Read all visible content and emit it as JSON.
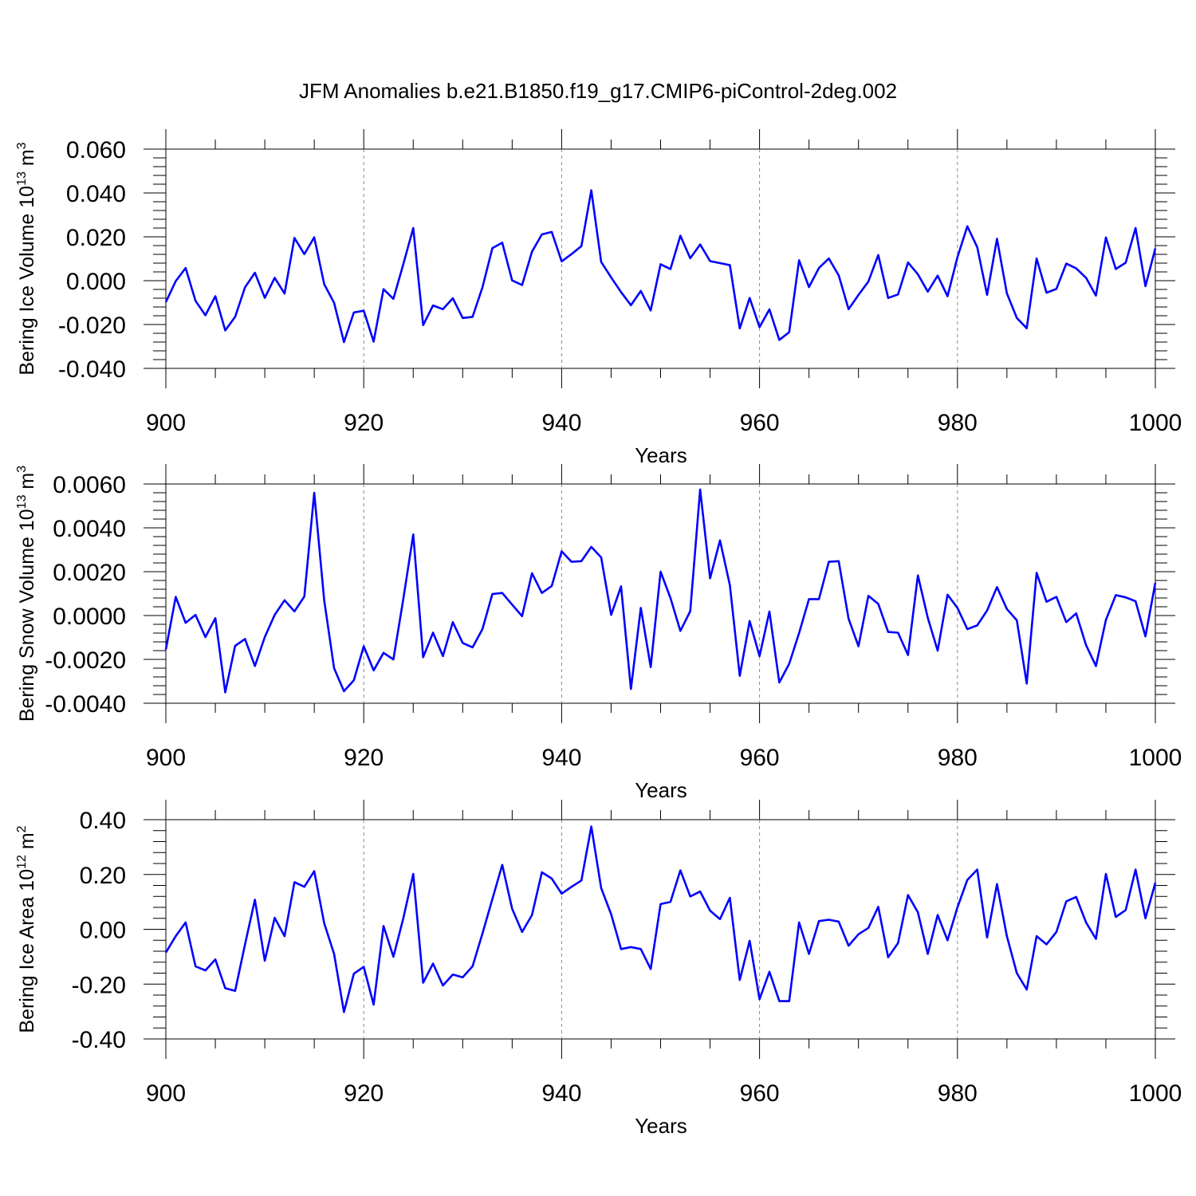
{
  "title": "JFM Anomalies b.e21.B1850.f19_g17.CMIP6-piControl-2deg.002",
  "line_color": "#0000ff",
  "chart_data": [
    {
      "type": "line",
      "ylabel": "Bering Ice Volume 10",
      "ylabel_exp": "13",
      "ylabel_unit": " m",
      "ylabel_unit_exp": "3",
      "xlabel": "Years",
      "xlim": [
        900,
        1000
      ],
      "ylim": [
        -0.04,
        0.06
      ],
      "xticks": [
        900,
        920,
        940,
        960,
        980,
        1000
      ],
      "xtick_labels": [
        "900",
        "920",
        "940",
        "960",
        "980",
        "1000"
      ],
      "yticks": [
        -0.04,
        -0.02,
        0.0,
        0.02,
        0.04,
        0.06
      ],
      "ytick_labels": [
        "-0.040",
        "-0.020",
        "0.000",
        "0.020",
        "0.040",
        "0.060"
      ],
      "grid_x": [
        920,
        940,
        960,
        980
      ],
      "x_start": 900,
      "values": [
        -0.0098,
        -0.0002,
        0.0058,
        -0.0092,
        -0.0158,
        -0.0071,
        -0.0227,
        -0.0165,
        -0.003,
        0.0036,
        -0.0078,
        0.0013,
        -0.0059,
        0.0195,
        0.0121,
        0.0198,
        -0.0016,
        -0.0101,
        -0.028,
        -0.0145,
        -0.0137,
        -0.0278,
        -0.0039,
        -0.0083,
        0.0075,
        0.024,
        -0.0203,
        -0.0113,
        -0.013,
        -0.008,
        -0.017,
        -0.0165,
        -0.003,
        0.0148,
        0.0173,
        0.0001,
        -0.002,
        0.0132,
        0.0211,
        0.0222,
        0.0088,
        0.0121,
        0.0158,
        0.0412,
        0.0085,
        0.0015,
        -0.0052,
        -0.0112,
        -0.0047,
        -0.0136,
        0.0075,
        0.0053,
        0.0205,
        0.0102,
        0.0165,
        0.0089,
        0.008,
        0.0071,
        -0.0218,
        -0.0079,
        -0.0212,
        -0.0131,
        -0.027,
        -0.0235,
        0.0093,
        -0.0029,
        0.0058,
        0.0101,
        0.0024,
        -0.013,
        -0.0065,
        -0.0004,
        0.0117,
        -0.0079,
        -0.0063,
        0.0083,
        0.0029,
        -0.005,
        0.0023,
        -0.0071,
        0.0107,
        0.0248,
        0.0153,
        -0.0065,
        0.0191,
        -0.0058,
        -0.017,
        -0.0217,
        0.0101,
        -0.0055,
        -0.0038,
        0.0078,
        0.0056,
        0.0013,
        -0.0068,
        0.0197,
        0.0053,
        0.0082,
        0.024,
        -0.0025,
        0.0147
      ]
    },
    {
      "type": "line",
      "ylabel": "Bering Snow Volume 10",
      "ylabel_exp": "13",
      "ylabel_unit": " m",
      "ylabel_unit_exp": "3",
      "xlabel": "Years",
      "xlim": [
        900,
        1000
      ],
      "ylim": [
        -0.004,
        0.006
      ],
      "xticks": [
        900,
        920,
        940,
        960,
        980,
        1000
      ],
      "xtick_labels": [
        "900",
        "920",
        "940",
        "960",
        "980",
        "1000"
      ],
      "yticks": [
        -0.004,
        -0.002,
        0.0,
        0.002,
        0.004,
        0.006
      ],
      "ytick_labels": [
        "-0.0040",
        "-0.0020",
        "0.0000",
        "0.0020",
        "0.0040",
        "0.0060"
      ],
      "grid_x": [
        920,
        940,
        960,
        980
      ],
      "x_start": 900,
      "values": [
        -0.00155,
        0.00085,
        -0.00033,
        3e-05,
        -0.00098,
        -0.00012,
        -0.0035,
        -0.00138,
        -0.00107,
        -0.0023,
        -0.00098,
        3e-05,
        0.0007,
        0.00019,
        0.00087,
        0.0056,
        0.0007,
        -0.0024,
        -0.00345,
        -0.00295,
        -0.0014,
        -0.0025,
        -0.0017,
        -0.002,
        0.00075,
        0.0037,
        -0.0019,
        -0.00078,
        -0.00185,
        -0.0003,
        -0.00125,
        -0.00145,
        -0.00062,
        0.00098,
        0.00103,
        0.0005,
        -3e-05,
        0.00193,
        0.00103,
        0.00135,
        0.00293,
        0.00245,
        0.00248,
        0.00313,
        0.00265,
        3e-05,
        0.00133,
        -0.00335,
        0.00035,
        -0.00235,
        0.002,
        0.0008,
        -0.0007,
        0.0002,
        0.00575,
        0.0017,
        0.00343,
        0.00138,
        -0.00275,
        -0.00025,
        -0.00185,
        0.00018,
        -0.00305,
        -0.0022,
        -0.0008,
        0.00075,
        0.00075,
        0.00245,
        0.00248,
        -0.00015,
        -0.0014,
        0.0009,
        0.00053,
        -0.00075,
        -0.00078,
        -0.0018,
        0.00183,
        -0.0001,
        -0.0016,
        0.00095,
        0.00035,
        -0.00062,
        -0.00045,
        0.00023,
        0.0013,
        0.0003,
        -0.00022,
        -0.0031,
        0.00195,
        0.00063,
        0.00085,
        -0.0003,
        0.0001,
        -0.00135,
        -0.0023,
        -0.0002,
        0.00093,
        0.00083,
        0.00065,
        -0.00095,
        0.0015
      ]
    },
    {
      "type": "line",
      "ylabel": "Bering Ice Area 10",
      "ylabel_exp": "12",
      "ylabel_unit": " m",
      "ylabel_unit_exp": "2",
      "xlabel": "Years",
      "xlim": [
        900,
        1000
      ],
      "ylim": [
        -0.4,
        0.4
      ],
      "xticks": [
        900,
        920,
        940,
        960,
        980,
        1000
      ],
      "xtick_labels": [
        "900",
        "920",
        "940",
        "960",
        "980",
        "1000"
      ],
      "yticks": [
        -0.4,
        -0.2,
        0.0,
        0.2,
        0.4
      ],
      "ytick_labels": [
        "-0.40",
        "-0.20",
        "0.00",
        "0.20",
        "0.40"
      ],
      "grid_x": [
        920,
        940,
        960,
        980
      ],
      "x_start": 900,
      "values": [
        -0.085,
        -0.025,
        0.025,
        -0.135,
        -0.15,
        -0.11,
        -0.215,
        -0.225,
        -0.055,
        0.108,
        -0.115,
        0.042,
        -0.025,
        0.172,
        0.155,
        0.212,
        0.022,
        -0.09,
        -0.302,
        -0.162,
        -0.137,
        -0.275,
        0.012,
        -0.1,
        0.04,
        0.202,
        -0.195,
        -0.125,
        -0.205,
        -0.165,
        -0.175,
        -0.135,
        -0.015,
        0.11,
        0.235,
        0.075,
        -0.01,
        0.052,
        0.208,
        0.185,
        0.13,
        0.155,
        0.178,
        0.375,
        0.15,
        0.055,
        -0.072,
        -0.065,
        -0.072,
        -0.145,
        0.092,
        0.1,
        0.215,
        0.12,
        0.138,
        0.068,
        0.037,
        0.115,
        -0.185,
        -0.042,
        -0.255,
        -0.155,
        -0.262,
        -0.262,
        0.025,
        -0.09,
        0.03,
        0.035,
        0.028,
        -0.06,
        -0.018,
        0.005,
        0.082,
        -0.102,
        -0.05,
        0.125,
        0.062,
        -0.09,
        0.052,
        -0.04,
        0.08,
        0.18,
        0.218,
        -0.03,
        0.165,
        -0.025,
        -0.16,
        -0.22,
        -0.025,
        -0.055,
        -0.01,
        0.102,
        0.118,
        0.025,
        -0.035,
        0.202,
        0.045,
        0.07,
        0.218,
        0.04,
        0.17
      ]
    }
  ]
}
